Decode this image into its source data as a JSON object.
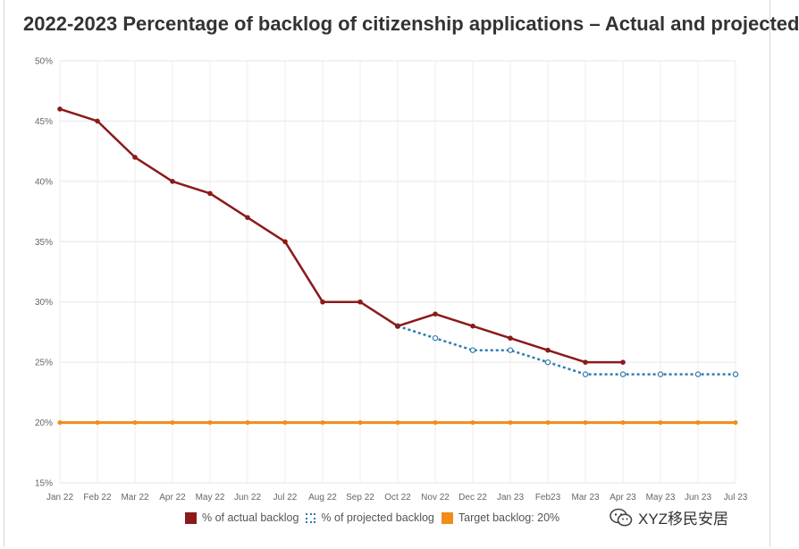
{
  "title": "2022-2023 Percentage of backlog of citizenship applications – Actual and projected",
  "chart_data": {
    "type": "line",
    "title": "2022-2023 Percentage of backlog of citizenship applications – Actual and projected",
    "categories": [
      "Jan 22",
      "Feb 22",
      "Mar 22",
      "Apr 22",
      "May 22",
      "Jun 22",
      "Jul 22",
      "Aug 22",
      "Sep 22",
      "Oct 22",
      "Nov 22",
      "Dec 22",
      "Jan 23",
      "Feb23",
      "Mar 23",
      "Apr 23",
      "May 23",
      "Jun 23",
      "Jul 23"
    ],
    "y_ticks": [
      "15%",
      "20%",
      "25%",
      "30%",
      "35%",
      "40%",
      "45%",
      "50%"
    ],
    "ylim": [
      15,
      50
    ],
    "series": [
      {
        "name": "% of actual backlog",
        "style": "solid",
        "color": "#8b1a1a",
        "values": [
          46,
          45,
          42,
          40,
          39,
          37,
          35,
          30,
          30,
          28,
          29,
          28,
          27,
          26,
          25,
          25,
          null,
          null,
          null
        ]
      },
      {
        "name": "% of projected backlog",
        "style": "dotted",
        "color": "#2e7cac",
        "values": [
          null,
          null,
          null,
          null,
          null,
          null,
          null,
          null,
          null,
          28,
          27,
          26,
          26,
          25,
          24,
          24,
          24,
          24,
          24
        ]
      },
      {
        "name": "Target backlog: 20%",
        "style": "solid",
        "color": "#f08c1a",
        "values": [
          20,
          20,
          20,
          20,
          20,
          20,
          20,
          20,
          20,
          20,
          20,
          20,
          20,
          20,
          20,
          20,
          20,
          20,
          20
        ]
      }
    ]
  },
  "legend": {
    "actual": "% of actual backlog",
    "projected": "% of projected backlog",
    "target": "Target backlog: 20%"
  },
  "watermark": "XYZ移民安居"
}
